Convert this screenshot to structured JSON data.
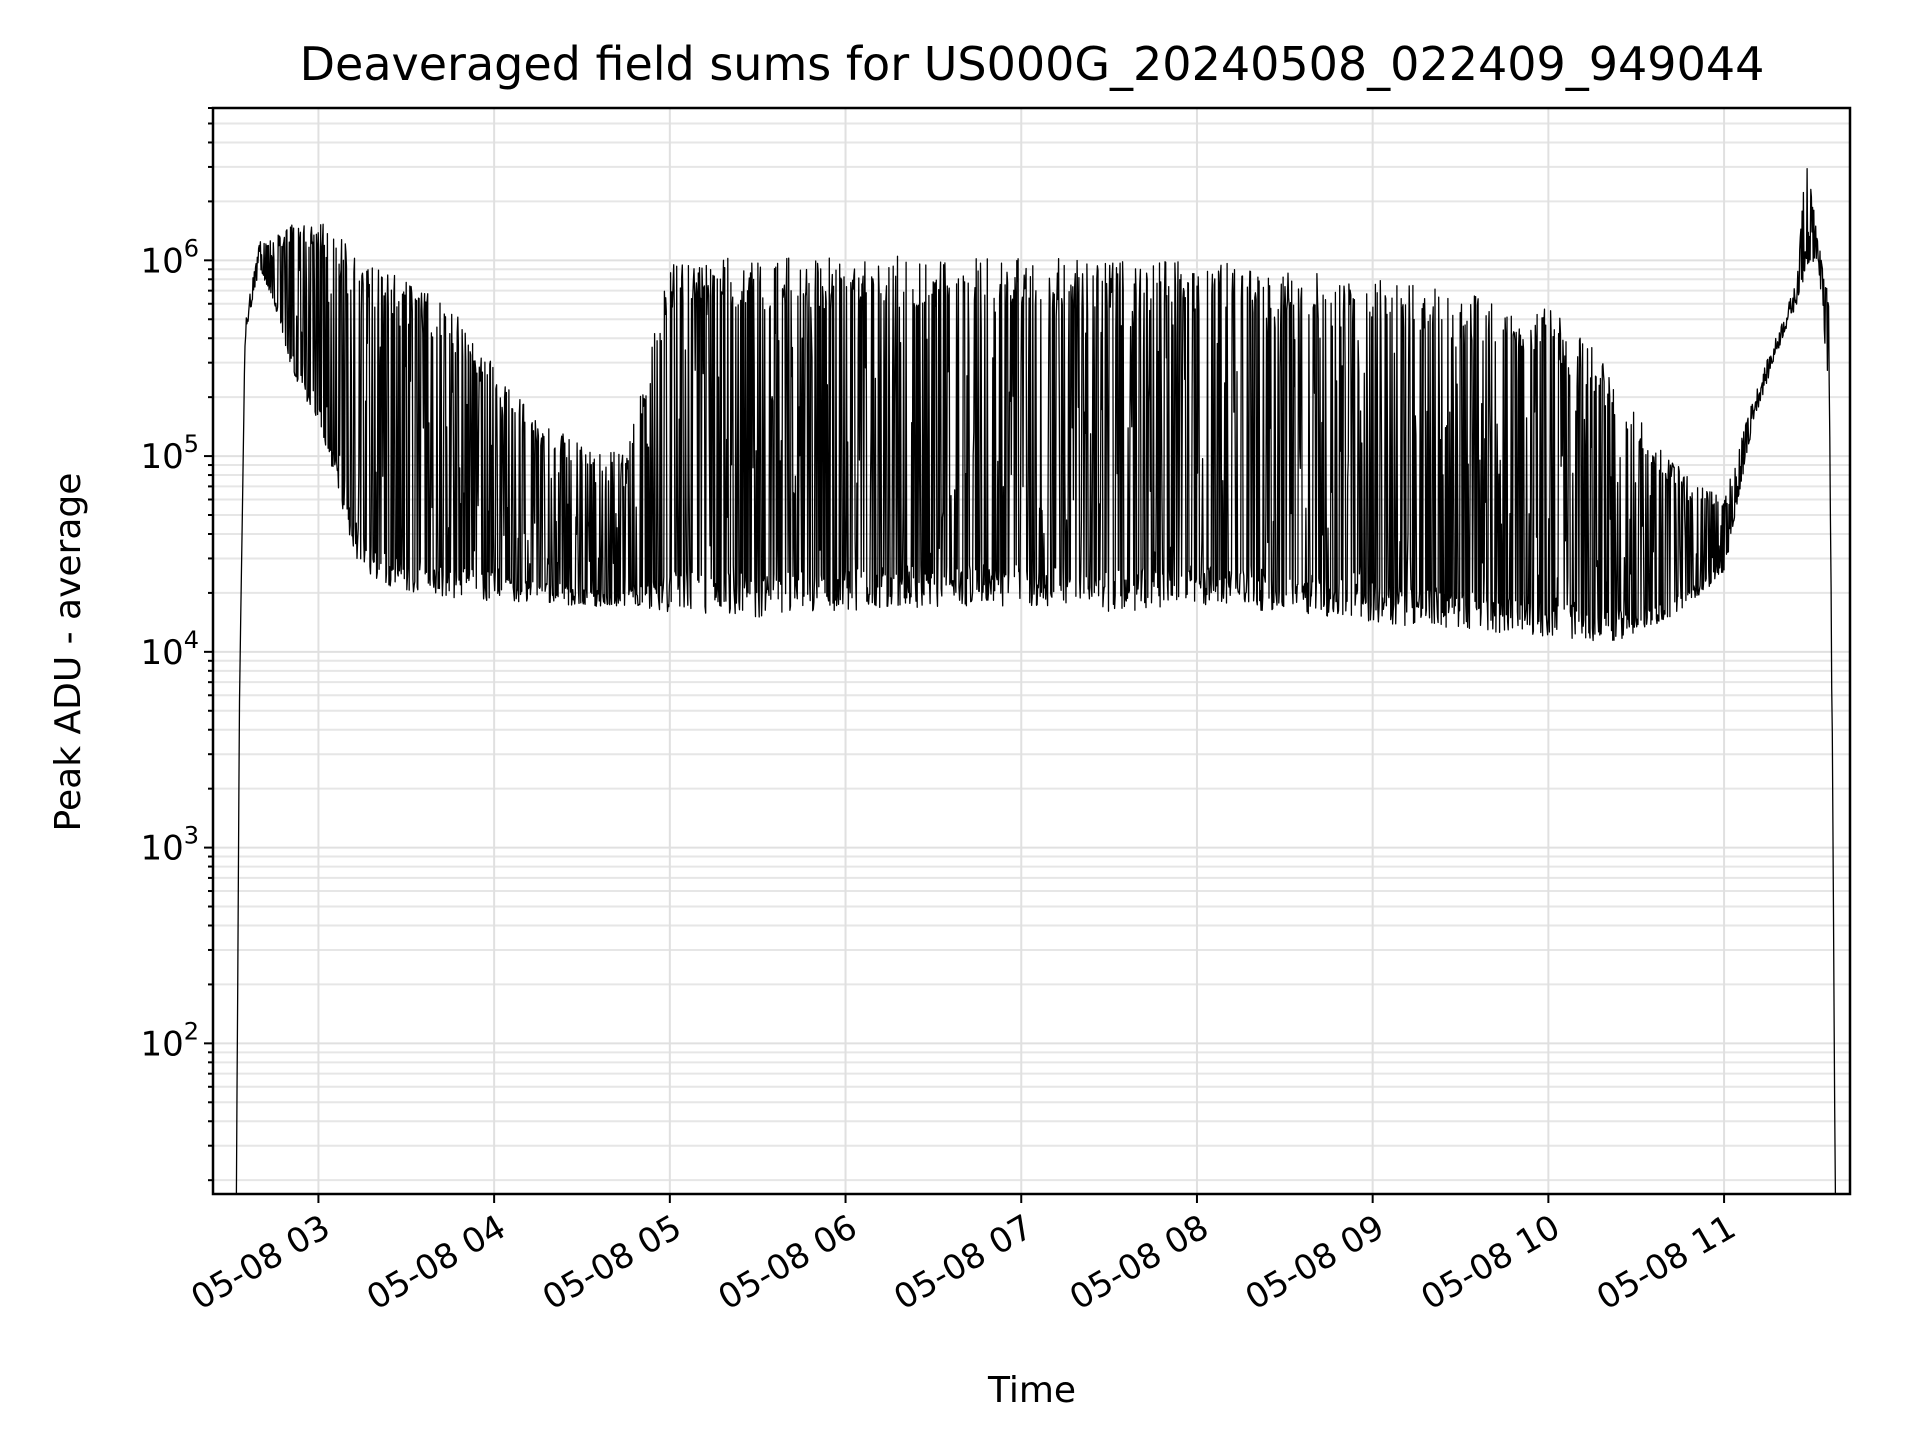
{
  "chart_data": {
    "type": "line",
    "title": "Deaveraged field sums for US000G_20240508_022409_949044",
    "xlabel": "Time",
    "ylabel": "Peak ADU - average",
    "yscale": "log",
    "ylim": [
      17,
      6000000
    ],
    "xlim": [
      "2024-05-08T02:24:00",
      "2024-05-08T11:43:00"
    ],
    "grid": true,
    "legend": "none",
    "line_color": "#000000",
    "x_ticks": [
      "2024-05-08T03:00:00",
      "2024-05-08T04:00:00",
      "2024-05-08T05:00:00",
      "2024-05-08T06:00:00",
      "2024-05-08T07:00:00",
      "2024-05-08T08:00:00",
      "2024-05-08T09:00:00",
      "2024-05-08T10:00:00",
      "2024-05-08T11:00:00"
    ],
    "x_tick_labels": [
      "05-08 03",
      "05-08 04",
      "05-08 05",
      "05-08 06",
      "05-08 07",
      "05-08 08",
      "05-08 09",
      "05-08 10",
      "05-08 11"
    ],
    "y_ticks": [
      {
        "base": "10",
        "exp": "2",
        "value": 100
      },
      {
        "base": "10",
        "exp": "3",
        "value": 1000
      },
      {
        "base": "10",
        "exp": "4",
        "value": 10000
      },
      {
        "base": "10",
        "exp": "5",
        "value": 100000
      },
      {
        "base": "10",
        "exp": "6",
        "value": 1000000
      }
    ],
    "series": [
      {
        "points": [
          {
            "t": "2024-05-08T02:32:00",
            "lo": 17,
            "hi": 17
          },
          {
            "t": "2024-05-08T02:33:00",
            "lo": 5000,
            "hi": 5000
          },
          {
            "t": "2024-05-08T02:35:00",
            "lo": 400000,
            "hi": 500000
          },
          {
            "t": "2024-05-08T02:40:00",
            "lo": 900000,
            "hi": 1250000
          },
          {
            "t": "2024-05-08T02:45:00",
            "lo": 600000,
            "hi": 1300000
          },
          {
            "t": "2024-05-08T02:50:00",
            "lo": 300000,
            "hi": 1500000
          },
          {
            "t": "2024-05-08T02:55:00",
            "lo": 200000,
            "hi": 1600000
          },
          {
            "t": "2024-05-08T03:00:00",
            "lo": 150000,
            "hi": 1600000
          },
          {
            "t": "2024-05-08T03:05:00",
            "lo": 80000,
            "hi": 1400000
          },
          {
            "t": "2024-05-08T03:10:00",
            "lo": 40000,
            "hi": 1200000
          },
          {
            "t": "2024-05-08T03:15:00",
            "lo": 25000,
            "hi": 1000000
          },
          {
            "t": "2024-05-08T03:20:00",
            "lo": 22000,
            "hi": 900000
          },
          {
            "t": "2024-05-08T03:30:00",
            "lo": 20000,
            "hi": 800000
          },
          {
            "t": "2024-05-08T03:45:00",
            "lo": 19000,
            "hi": 600000
          },
          {
            "t": "2024-05-08T04:00:00",
            "lo": 18000,
            "hi": 300000
          },
          {
            "t": "2024-05-08T04:15:00",
            "lo": 18000,
            "hi": 150000
          },
          {
            "t": "2024-05-08T04:30:00",
            "lo": 17000,
            "hi": 120000
          },
          {
            "t": "2024-05-08T04:45:00",
            "lo": 17000,
            "hi": 100000
          },
          {
            "t": "2024-05-08T05:00:00",
            "lo": 16000,
            "hi": 1000000
          },
          {
            "t": "2024-05-08T05:30:00",
            "lo": 15000,
            "hi": 1050000
          },
          {
            "t": "2024-05-08T06:00:00",
            "lo": 16000,
            "hi": 1050000
          },
          {
            "t": "2024-05-08T06:30:00",
            "lo": 17000,
            "hi": 1050000
          },
          {
            "t": "2024-05-08T07:00:00",
            "lo": 17000,
            "hi": 1050000
          },
          {
            "t": "2024-05-08T07:30:00",
            "lo": 16000,
            "hi": 1000000
          },
          {
            "t": "2024-05-08T08:00:00",
            "lo": 17000,
            "hi": 1000000
          },
          {
            "t": "2024-05-08T08:30:00",
            "lo": 16000,
            "hi": 900000
          },
          {
            "t": "2024-05-08T09:00:00",
            "lo": 14000,
            "hi": 800000
          },
          {
            "t": "2024-05-08T09:30:00",
            "lo": 13000,
            "hi": 700000
          },
          {
            "t": "2024-05-08T10:00:00",
            "lo": 12000,
            "hi": 600000
          },
          {
            "t": "2024-05-08T10:20:00",
            "lo": 11000,
            "hi": 300000
          },
          {
            "t": "2024-05-08T10:40:00",
            "lo": 14000,
            "hi": 100000
          },
          {
            "t": "2024-05-08T11:00:00",
            "lo": 25000,
            "hi": 60000
          },
          {
            "t": "2024-05-08T11:10:00",
            "lo": 150000,
            "hi": 200000
          },
          {
            "t": "2024-05-08T11:20:00",
            "lo": 400000,
            "hi": 500000
          },
          {
            "t": "2024-05-08T11:25:00",
            "lo": 600000,
            "hi": 800000
          },
          {
            "t": "2024-05-08T11:28:00",
            "lo": 900000,
            "hi": 3500000
          },
          {
            "t": "2024-05-08T11:32:00",
            "lo": 1000000,
            "hi": 1300000
          },
          {
            "t": "2024-05-08T11:36:00",
            "lo": 200000,
            "hi": 600000
          },
          {
            "t": "2024-05-08T11:38:00",
            "lo": 17,
            "hi": 17
          }
        ]
      }
    ]
  }
}
